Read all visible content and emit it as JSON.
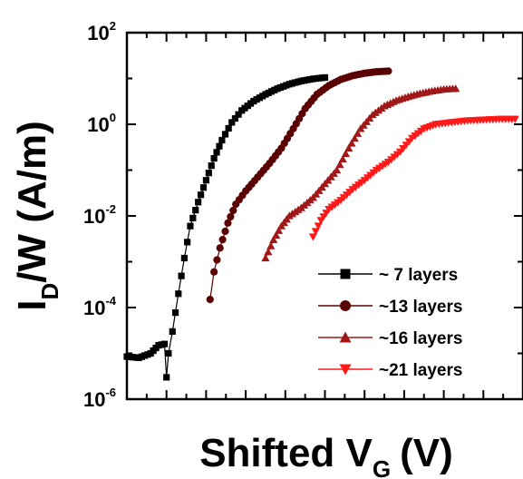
{
  "chart_data": {
    "type": "scatter",
    "title": "",
    "xlabel": {
      "main": "Shifted V",
      "sub": "G",
      "unit": "(V)"
    },
    "ylabel": {
      "main": "I",
      "sub": "D",
      "rest": "/W (A/m)"
    },
    "yscale": "log",
    "ylim": [
      1e-06,
      100
    ],
    "xlim": [
      0,
      10
    ],
    "yticks": [
      {
        "value": 100,
        "base": "10",
        "exp": "2"
      },
      {
        "value": 1,
        "base": "10",
        "exp": "0"
      },
      {
        "value": 0.01,
        "base": "10",
        "exp": "-2"
      },
      {
        "value": 0.0001,
        "base": "10",
        "exp": "-4"
      },
      {
        "value": 1e-06,
        "base": "10",
        "exp": "-6"
      }
    ],
    "legend_position": "bottom-right",
    "grid": false,
    "series": [
      {
        "name": "~  7 layers",
        "color": "#000000",
        "marker": "square",
        "points": [
          [
            0.0,
            8.5e-06
          ],
          [
            0.3,
            8e-06
          ],
          [
            0.6,
            1e-05
          ],
          [
            0.8,
            1.5e-05
          ],
          [
            0.95,
            1.6e-05
          ],
          [
            1.0,
            3e-06
          ],
          [
            1.05,
            1e-05
          ],
          [
            1.15,
            3e-05
          ],
          [
            1.3,
            0.0002
          ],
          [
            1.45,
            0.0012
          ],
          [
            1.6,
            0.006
          ],
          [
            1.8,
            0.02
          ],
          [
            2.0,
            0.06
          ],
          [
            2.2,
            0.18
          ],
          [
            2.4,
            0.45
          ],
          [
            2.65,
            1.1
          ],
          [
            2.9,
            2.0
          ],
          [
            3.2,
            3.2
          ],
          [
            3.5,
            4.5
          ],
          [
            3.8,
            6.0
          ],
          [
            4.1,
            7.5
          ],
          [
            4.4,
            8.8
          ],
          [
            4.7,
            9.8
          ],
          [
            5.0,
            10.5
          ]
        ]
      },
      {
        "name": "~13 layers",
        "color": "#5a0000",
        "marker": "circle",
        "points": [
          [
            2.1,
            0.00015
          ],
          [
            2.2,
            0.0006
          ],
          [
            2.35,
            0.002
          ],
          [
            2.55,
            0.007
          ],
          [
            2.75,
            0.018
          ],
          [
            3.0,
            0.035
          ],
          [
            3.3,
            0.07
          ],
          [
            3.6,
            0.14
          ],
          [
            3.9,
            0.3
          ],
          [
            4.2,
            0.8
          ],
          [
            4.5,
            2.2
          ],
          [
            4.8,
            4.5
          ],
          [
            5.1,
            7.0
          ],
          [
            5.4,
            9.5
          ],
          [
            5.7,
            11.5
          ],
          [
            6.0,
            13.0
          ],
          [
            6.3,
            14.0
          ],
          [
            6.6,
            14.5
          ]
        ]
      },
      {
        "name": "~16 layers",
        "color": "#a01818",
        "marker": "triangle-up",
        "points": [
          [
            3.5,
            0.0012
          ],
          [
            3.7,
            0.003
          ],
          [
            3.9,
            0.006
          ],
          [
            4.1,
            0.01
          ],
          [
            4.4,
            0.015
          ],
          [
            4.7,
            0.025
          ],
          [
            5.0,
            0.05
          ],
          [
            5.3,
            0.1
          ],
          [
            5.6,
            0.3
          ],
          [
            5.9,
            0.8
          ],
          [
            6.2,
            1.6
          ],
          [
            6.5,
            2.5
          ],
          [
            6.8,
            3.3
          ],
          [
            7.1,
            4.0
          ],
          [
            7.4,
            4.7
          ],
          [
            7.7,
            5.3
          ],
          [
            8.0,
            5.8
          ],
          [
            8.3,
            6.0
          ]
        ]
      },
      {
        "name": "~21 layers",
        "color": "#ff1a1a",
        "marker": "triangle-down",
        "points": [
          [
            4.7,
            0.0035
          ],
          [
            4.9,
            0.008
          ],
          [
            5.1,
            0.014
          ],
          [
            5.4,
            0.022
          ],
          [
            5.7,
            0.038
          ],
          [
            6.0,
            0.06
          ],
          [
            6.3,
            0.1
          ],
          [
            6.6,
            0.15
          ],
          [
            6.9,
            0.25
          ],
          [
            7.2,
            0.5
          ],
          [
            7.5,
            0.8
          ],
          [
            7.8,
            1.0
          ],
          [
            8.2,
            1.1
          ],
          [
            8.6,
            1.2
          ],
          [
            9.0,
            1.25
          ],
          [
            9.4,
            1.3
          ],
          [
            9.8,
            1.3
          ]
        ]
      }
    ]
  }
}
